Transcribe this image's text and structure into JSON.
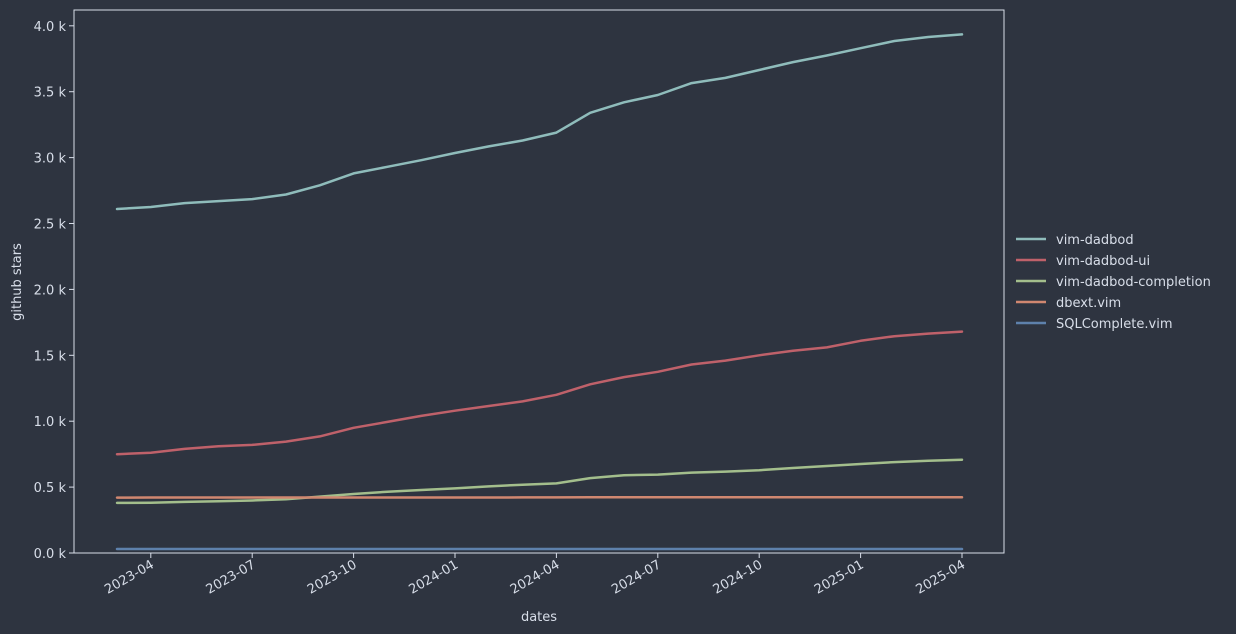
{
  "chart_data": {
    "type": "line",
    "xlabel": "dates",
    "ylabel": "github stars",
    "ylim": [
      0,
      4120
    ],
    "grid": false,
    "legend_position": "right-outside",
    "background": "#2e3440",
    "text_color": "#d8dee9",
    "x_ticks": [
      "2023-04",
      "2023-07",
      "2023-10",
      "2024-01",
      "2024-04",
      "2024-07",
      "2024-10",
      "2025-01",
      "2025-04"
    ],
    "y_ticks": [
      {
        "value": 0,
        "label": "0.0 k"
      },
      {
        "value": 500,
        "label": "0.5 k"
      },
      {
        "value": 1000,
        "label": "1.0 k"
      },
      {
        "value": 1500,
        "label": "1.5 k"
      },
      {
        "value": 2000,
        "label": "2.0 k"
      },
      {
        "value": 2500,
        "label": "2.5 k"
      },
      {
        "value": 3000,
        "label": "3.0 k"
      },
      {
        "value": 3500,
        "label": "3.5 k"
      },
      {
        "value": 4000,
        "label": "4.0 k"
      }
    ],
    "x": [
      "2023-03",
      "2023-04",
      "2023-05",
      "2023-06",
      "2023-07",
      "2023-08",
      "2023-09",
      "2023-10",
      "2023-11",
      "2023-12",
      "2024-01",
      "2024-02",
      "2024-03",
      "2024-04",
      "2024-05",
      "2024-06",
      "2024-07",
      "2024-08",
      "2024-09",
      "2024-10",
      "2024-11",
      "2024-12",
      "2025-01",
      "2025-02",
      "2025-03",
      "2025-04"
    ],
    "series": [
      {
        "name": "vim-dadbod",
        "color": "#8fbcbb",
        "values": [
          2610,
          2625,
          2655,
          2670,
          2685,
          2720,
          2790,
          2880,
          2930,
          2980,
          3035,
          3085,
          3130,
          3190,
          3340,
          3420,
          3475,
          3565,
          3605,
          3665,
          3725,
          3775,
          3830,
          3885,
          3915,
          3935
        ]
      },
      {
        "name": "vim-dadbod-ui",
        "color": "#bf616a",
        "values": [
          750,
          760,
          790,
          810,
          820,
          845,
          885,
          950,
          995,
          1040,
          1080,
          1115,
          1150,
          1200,
          1280,
          1335,
          1375,
          1430,
          1460,
          1500,
          1535,
          1560,
          1610,
          1645,
          1665,
          1680
        ]
      },
      {
        "name": "vim-dadbod-completion",
        "color": "#a3be8c",
        "values": [
          380,
          382,
          388,
          393,
          398,
          408,
          428,
          448,
          465,
          478,
          490,
          505,
          518,
          528,
          568,
          590,
          595,
          610,
          618,
          628,
          645,
          660,
          675,
          690,
          700,
          708
        ]
      },
      {
        "name": "dbext.vim",
        "color": "#d08770",
        "values": [
          420,
          421,
          421,
          421,
          421,
          421,
          421,
          421,
          421,
          421,
          421,
          421,
          422,
          422,
          423,
          423,
          423,
          423,
          423,
          423,
          423,
          423,
          423,
          423,
          423,
          423
        ]
      },
      {
        "name": "SQLComplete.vim",
        "color": "#5e81ac",
        "values": [
          30,
          30,
          30,
          30,
          30,
          30,
          30,
          30,
          30,
          30,
          30,
          30,
          30,
          30,
          30,
          30,
          30,
          30,
          30,
          30,
          30,
          30,
          30,
          30,
          30,
          30
        ]
      }
    ]
  }
}
